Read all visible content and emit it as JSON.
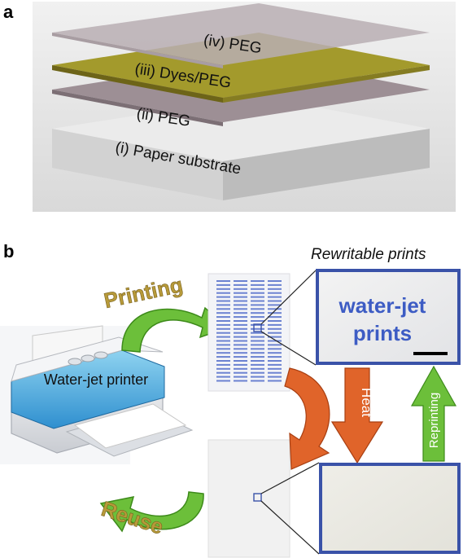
{
  "panel_a": {
    "letter": "a",
    "layers": [
      {
        "label": "(iv) PEG",
        "color": "#b9aeb3"
      },
      {
        "label": "(iii) Dyes/PEG",
        "color": "#a39a2c"
      },
      {
        "label": "(ii) PEG",
        "color": "#9d8f95"
      },
      {
        "label": "(i) Paper substrate",
        "color": "#ebebeb"
      }
    ],
    "background_color": "#e6e6e6"
  },
  "panel_b": {
    "letter": "b",
    "caption": "Rewritable prints",
    "step_printing": "Printing",
    "step_reuse": "Reuse",
    "printer_label": "Water-jet printer",
    "zoom_text_line1": "water-jet",
    "zoom_text_line2": "prints",
    "arrow_heat": "Heat",
    "arrow_reprinting": "Reprinting",
    "colors": {
      "frame_blue": "#3a52a8",
      "print_blue": "#3d5cc4",
      "arrow_green": "#6cbf3a",
      "arrow_orange": "#e0642a",
      "step_gold": "#b79a3a"
    },
    "icons": [
      "printer-icon",
      "curved-arrow-icon",
      "zoom-marker-icon",
      "scale-bar-icon"
    ]
  }
}
